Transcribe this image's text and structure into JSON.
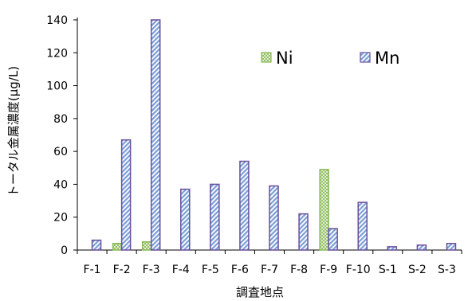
{
  "chart_data": {
    "type": "bar",
    "categories": [
      "F-1",
      "F-2",
      "F-3",
      "F-4",
      "F-5",
      "F-6",
      "F-7",
      "F-8",
      "F-9",
      "F-10",
      "S-1",
      "S-2",
      "S-3"
    ],
    "series": [
      {
        "name": "Ni",
        "values": [
          0,
          4,
          5,
          0,
          0,
          0,
          0,
          0,
          49,
          0,
          0,
          0,
          0
        ]
      },
      {
        "name": "Mn",
        "values": [
          6,
          67,
          140,
          37,
          40,
          54,
          39,
          22,
          13,
          29,
          2,
          3,
          4
        ]
      }
    ],
    "title": "",
    "xlabel": "調査地点",
    "ylabel": "トータル金属濃度(μg/L)",
    "ylim": [
      0,
      140
    ],
    "yticks": [
      0,
      20,
      40,
      60,
      80,
      100,
      120,
      140
    ],
    "grid": false,
    "legend": "top-right",
    "colors": {
      "ni_fill": "#c5e0a8",
      "ni_edge": "#8cbb5a",
      "mn_fill": "#7a9fd6",
      "mn_edge": "#6a4f9c"
    }
  }
}
